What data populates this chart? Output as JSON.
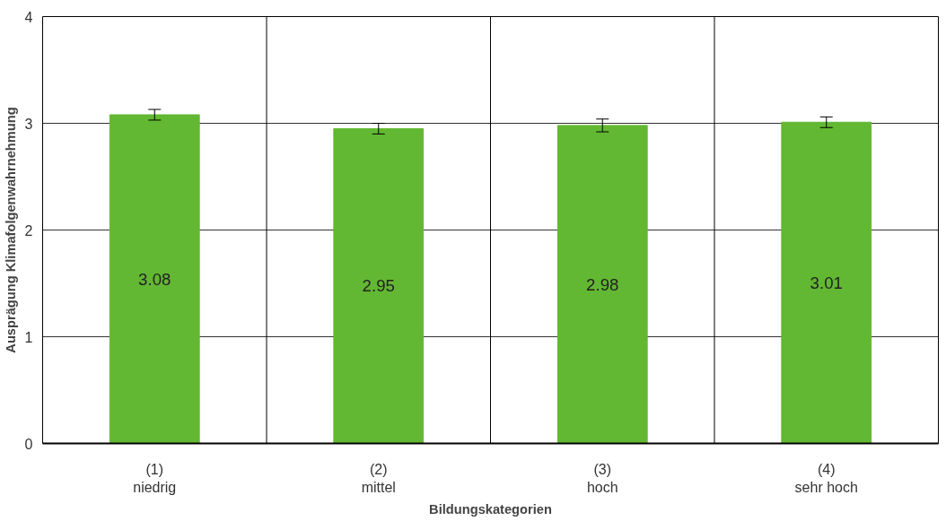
{
  "chart_data": {
    "type": "bar",
    "xlabel": "Bildungskategorien",
    "ylabel": "Ausprägung Klimafolgenwahrnehmung",
    "categories": [
      "(1)\nniedrig",
      "(2)\nmittel",
      "(3)\nhoch",
      "(4)\nsehr hoch"
    ],
    "series": [
      {
        "color": "#62b832",
        "values": [
          3.08,
          2.95,
          2.98,
          3.01
        ],
        "errors": [
          0.05,
          0.05,
          0.06,
          0.05
        ]
      }
    ],
    "ylim": [
      0,
      4
    ],
    "yticks": [
      0,
      1,
      2,
      3,
      4
    ],
    "grid": "y",
    "data_labels": true
  }
}
